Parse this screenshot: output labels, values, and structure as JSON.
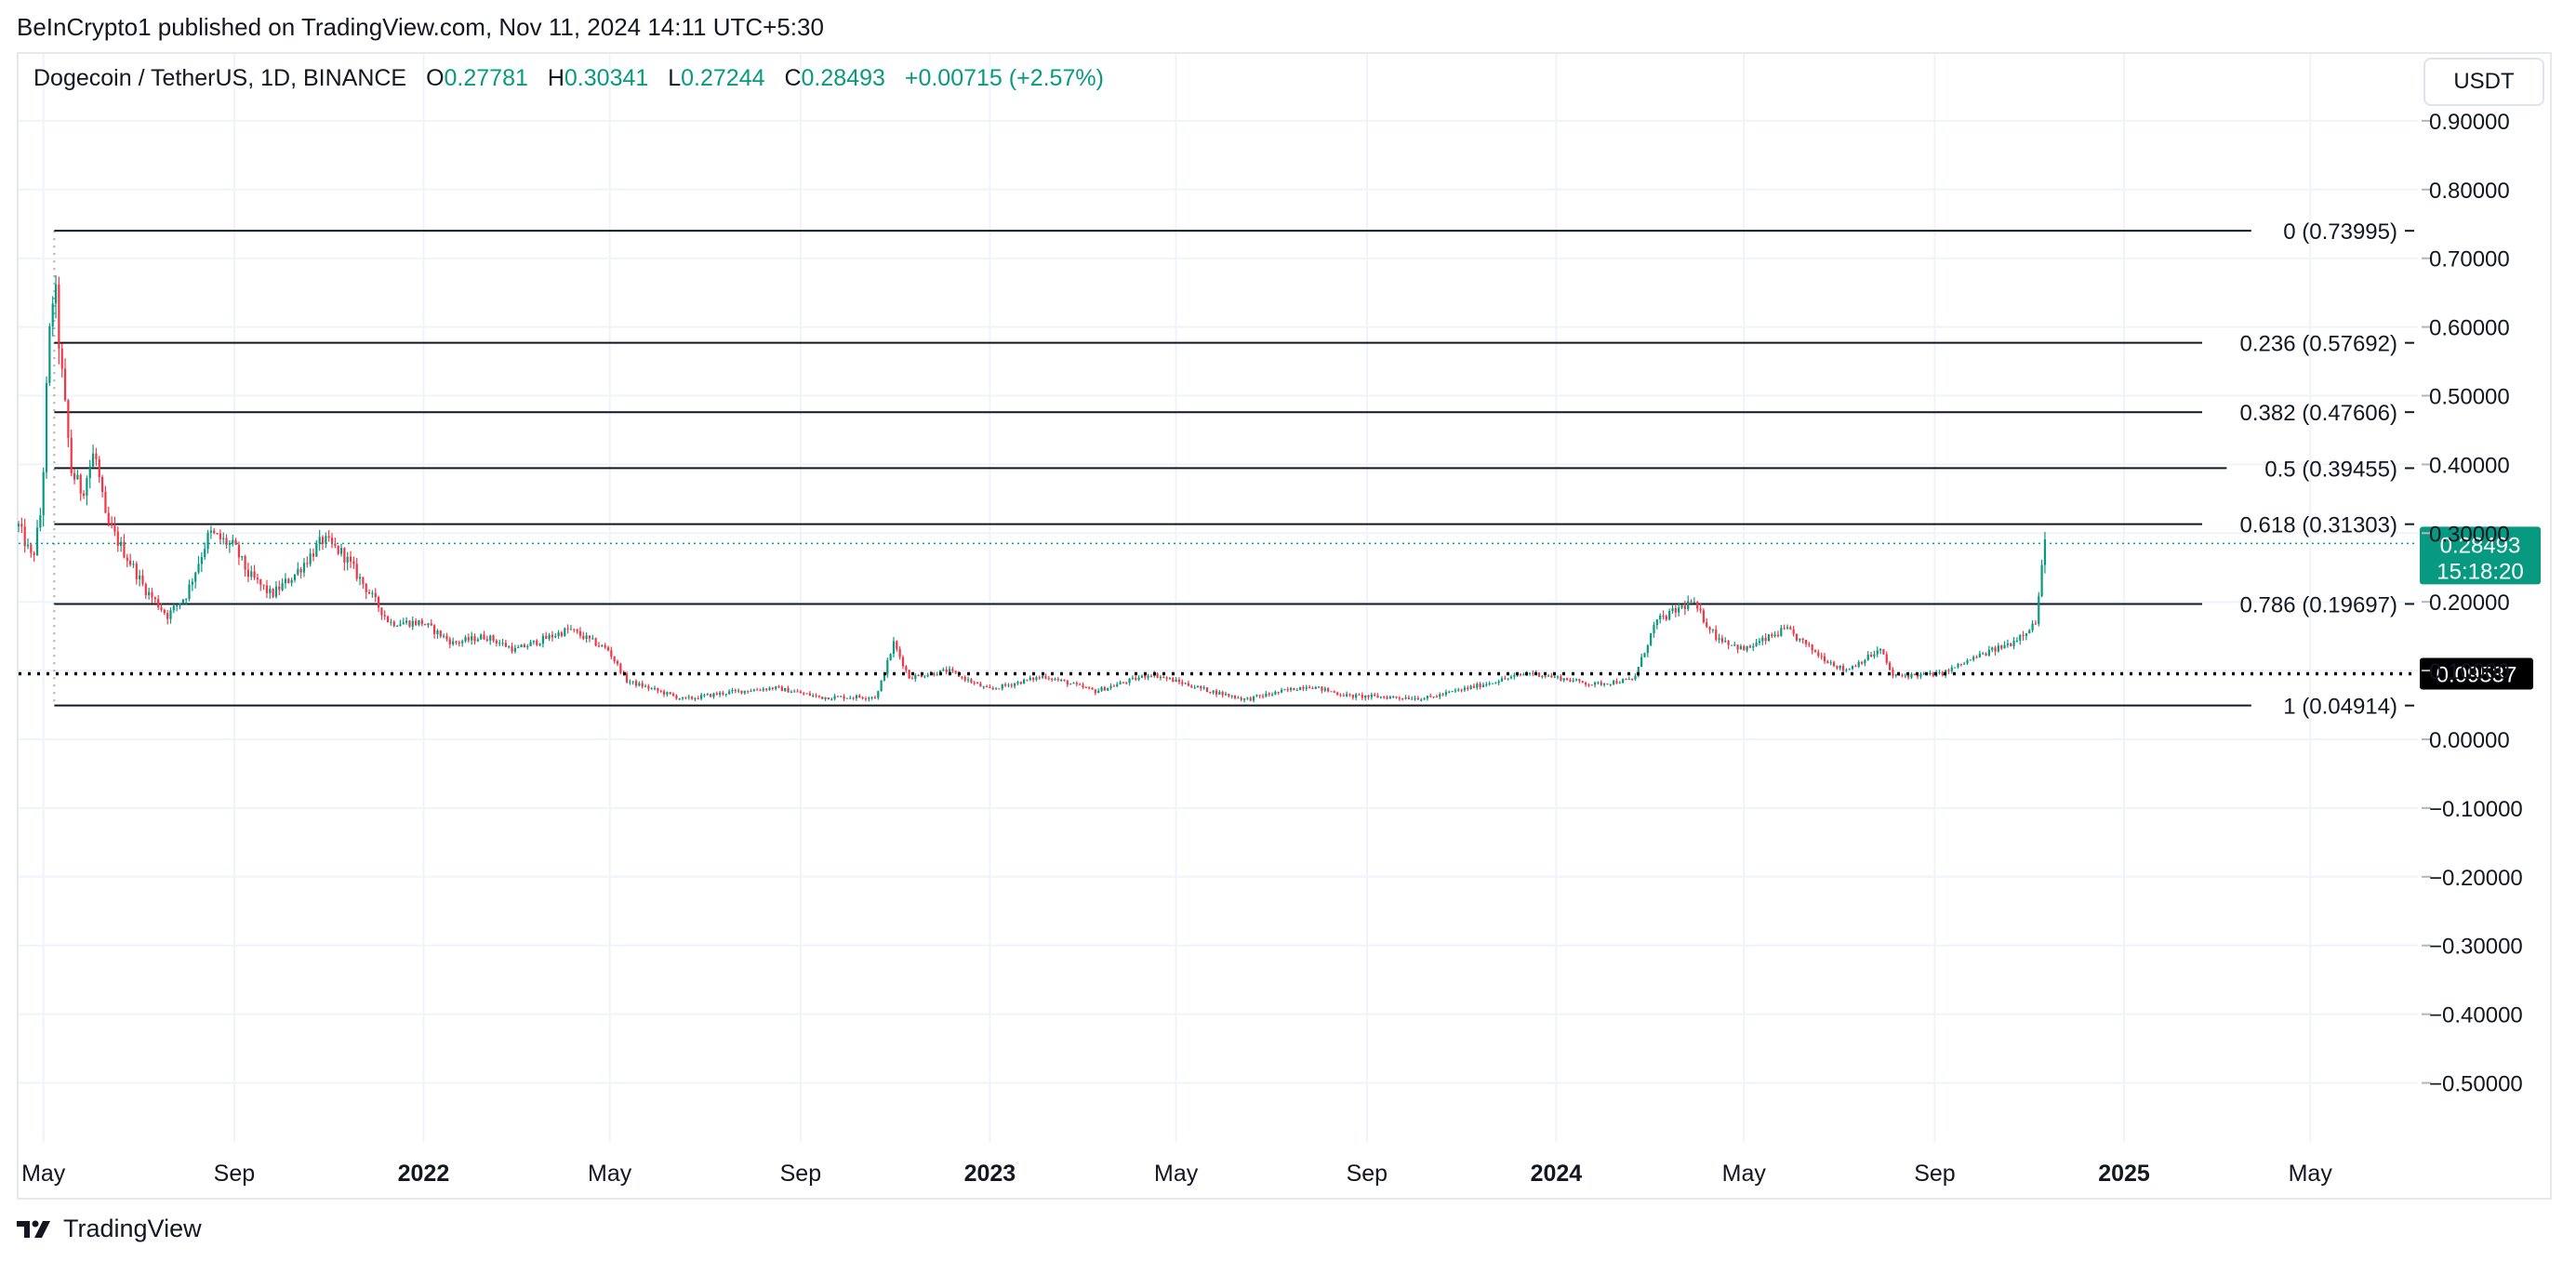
{
  "header": {
    "published": "BeInCrypto1 published on TradingView.com, Nov 11, 2024 14:11 UTC+5:30"
  },
  "legend": {
    "symbol": "Dogecoin / TetherUS, 1D, BINANCE",
    "open_label": "O",
    "open": "0.27781",
    "high_label": "H",
    "high": "0.30341",
    "low_label": "L",
    "low": "0.27244",
    "close_label": "C",
    "close": "0.28493",
    "change": "+0.00715 (+2.57%)"
  },
  "currency_button": "USDT",
  "footer": {
    "brand": "TradingView"
  },
  "colors": {
    "up": "#089981",
    "down": "#F23645",
    "grid": "#f0f3fa",
    "text": "#131722"
  },
  "chart_data": {
    "type": "candlestick",
    "series_name": "",
    "price_axis": {
      "ticks": [
        "0.90000",
        "0.80000",
        "0.70000",
        "0.60000",
        "0.50000",
        "0.40000",
        "0.30000",
        "0.20000",
        "0.10000",
        "0.00000",
        "−0.10000",
        "−0.20000",
        "−0.30000",
        "−0.40000",
        "−0.50000"
      ],
      "tick_values": [
        0.9,
        0.8,
        0.7,
        0.6,
        0.5,
        0.4,
        0.3,
        0.2,
        0.1,
        0.0,
        -0.1,
        -0.2,
        -0.3,
        -0.4,
        -0.5
      ],
      "ylim": [
        -0.54,
        0.94
      ]
    },
    "time_axis": {
      "xlim": [
        "2021-04-15",
        "2025-07-01"
      ],
      "ticks": [
        {
          "label": "May",
          "date": "2021-05-01",
          "bold": false
        },
        {
          "label": "Sep",
          "date": "2021-09-01",
          "bold": false
        },
        {
          "label": "2022",
          "date": "2022-01-01",
          "bold": true
        },
        {
          "label": "May",
          "date": "2022-05-01",
          "bold": false
        },
        {
          "label": "Sep",
          "date": "2022-09-01",
          "bold": false
        },
        {
          "label": "2023",
          "date": "2023-01-01",
          "bold": true
        },
        {
          "label": "May",
          "date": "2023-05-01",
          "bold": false
        },
        {
          "label": "Sep",
          "date": "2023-09-01",
          "bold": false
        },
        {
          "label": "2024",
          "date": "2024-01-01",
          "bold": true
        },
        {
          "label": "May",
          "date": "2024-05-01",
          "bold": false
        },
        {
          "label": "Sep",
          "date": "2024-09-01",
          "bold": false
        },
        {
          "label": "2025",
          "date": "2025-01-01",
          "bold": true
        },
        {
          "label": "May",
          "date": "2025-05-01",
          "bold": false
        }
      ]
    },
    "fib_levels": [
      {
        "label": "0 (0.73995)",
        "value": 0.73995
      },
      {
        "label": "0.236 (0.57692)",
        "value": 0.57692
      },
      {
        "label": "0.382 (0.47606)",
        "value": 0.47606
      },
      {
        "label": "0.5 (0.39455)",
        "value": 0.39455
      },
      {
        "label": "0.618 (0.31303)",
        "value": 0.31303
      },
      {
        "label": "0.786 (0.19697)",
        "value": 0.19697
      },
      {
        "label": "1 (0.04914)",
        "value": 0.04914
      }
    ],
    "fib_start_date": "2021-05-08",
    "horizontal_line": {
      "value": 0.09537,
      "label": "0.09537",
      "style": "dotted"
    },
    "last_price": {
      "value": 0.28493,
      "label": "0.28493",
      "countdown": "15:18:20"
    },
    "price_path": [
      {
        "date": "2021-04-15",
        "price": 0.31
      },
      {
        "date": "2021-04-24",
        "price": 0.26
      },
      {
        "date": "2021-04-30",
        "price": 0.34
      },
      {
        "date": "2021-05-04",
        "price": 0.56
      },
      {
        "date": "2021-05-08",
        "price": 0.67
      },
      {
        "date": "2021-05-12",
        "price": 0.55
      },
      {
        "date": "2021-05-19",
        "price": 0.39
      },
      {
        "date": "2021-05-26",
        "price": 0.36
      },
      {
        "date": "2021-06-03",
        "price": 0.42
      },
      {
        "date": "2021-06-10",
        "price": 0.32
      },
      {
        "date": "2021-06-20",
        "price": 0.28
      },
      {
        "date": "2021-06-28",
        "price": 0.25
      },
      {
        "date": "2021-07-05",
        "price": 0.22
      },
      {
        "date": "2021-07-20",
        "price": 0.18
      },
      {
        "date": "2021-08-01",
        "price": 0.21
      },
      {
        "date": "2021-08-16",
        "price": 0.3
      },
      {
        "date": "2021-09-01",
        "price": 0.28
      },
      {
        "date": "2021-09-10",
        "price": 0.24
      },
      {
        "date": "2021-09-25",
        "price": 0.21
      },
      {
        "date": "2021-10-10",
        "price": 0.24
      },
      {
        "date": "2021-10-28",
        "price": 0.29
      },
      {
        "date": "2021-11-10",
        "price": 0.27
      },
      {
        "date": "2021-11-25",
        "price": 0.22
      },
      {
        "date": "2021-12-10",
        "price": 0.17
      },
      {
        "date": "2021-12-31",
        "price": 0.17
      },
      {
        "date": "2022-01-20",
        "price": 0.14
      },
      {
        "date": "2022-02-10",
        "price": 0.15
      },
      {
        "date": "2022-03-01",
        "price": 0.13
      },
      {
        "date": "2022-04-05",
        "price": 0.16
      },
      {
        "date": "2022-04-30",
        "price": 0.13
      },
      {
        "date": "2022-05-12",
        "price": 0.085
      },
      {
        "date": "2022-06-18",
        "price": 0.058
      },
      {
        "date": "2022-07-15",
        "price": 0.068
      },
      {
        "date": "2022-08-15",
        "price": 0.075
      },
      {
        "date": "2022-09-15",
        "price": 0.061
      },
      {
        "date": "2022-10-20",
        "price": 0.062
      },
      {
        "date": "2022-10-31",
        "price": 0.14
      },
      {
        "date": "2022-11-10",
        "price": 0.09
      },
      {
        "date": "2022-12-05",
        "price": 0.1
      },
      {
        "date": "2022-12-31",
        "price": 0.072
      },
      {
        "date": "2023-02-05",
        "price": 0.092
      },
      {
        "date": "2023-03-10",
        "price": 0.07
      },
      {
        "date": "2023-04-15",
        "price": 0.095
      },
      {
        "date": "2023-05-20",
        "price": 0.072
      },
      {
        "date": "2023-06-15",
        "price": 0.058
      },
      {
        "date": "2023-07-25",
        "price": 0.078
      },
      {
        "date": "2023-08-20",
        "price": 0.063
      },
      {
        "date": "2023-10-10",
        "price": 0.06
      },
      {
        "date": "2023-11-15",
        "price": 0.08
      },
      {
        "date": "2023-12-15",
        "price": 0.097
      },
      {
        "date": "2024-01-25",
        "price": 0.08
      },
      {
        "date": "2024-02-20",
        "price": 0.087
      },
      {
        "date": "2024-03-05",
        "price": 0.17
      },
      {
        "date": "2024-03-28",
        "price": 0.2
      },
      {
        "date": "2024-04-13",
        "price": 0.15
      },
      {
        "date": "2024-05-01",
        "price": 0.13
      },
      {
        "date": "2024-05-28",
        "price": 0.16
      },
      {
        "date": "2024-06-20",
        "price": 0.12
      },
      {
        "date": "2024-07-05",
        "price": 0.1
      },
      {
        "date": "2024-07-28",
        "price": 0.13
      },
      {
        "date": "2024-08-05",
        "price": 0.092
      },
      {
        "date": "2024-09-05",
        "price": 0.095
      },
      {
        "date": "2024-09-28",
        "price": 0.12
      },
      {
        "date": "2024-10-20",
        "price": 0.14
      },
      {
        "date": "2024-11-05",
        "price": 0.17
      },
      {
        "date": "2024-11-11",
        "price": 0.285
      }
    ]
  }
}
